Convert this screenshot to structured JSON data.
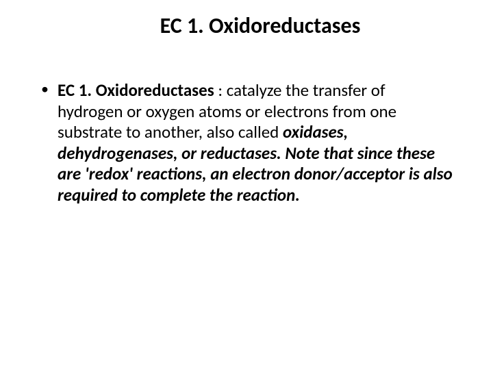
{
  "slide": {
    "title": "EC 1. Oxidoreductases",
    "bullet": {
      "run1_bold": "EC 1. Oxidoreductases ",
      "run2_plain": ": catalyze the transfer of hydrogen or oxygen atoms or electrons from one substrate to another, also called ",
      "run3_italic_bold": "oxidases, dehydrogenases, or reductases. Note that since these are 'redox' reactions, an electron donor/acceptor is also required to complete the reaction."
    },
    "colors": {
      "background": "#ffffff",
      "text": "#000000"
    },
    "typography": {
      "title_fontsize": 32,
      "body_fontsize": 25,
      "font_family": "Calibri"
    }
  }
}
